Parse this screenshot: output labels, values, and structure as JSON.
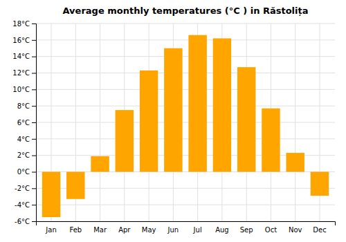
{
  "chart_data": {
    "type": "bar",
    "title": "Average monthly temperatures (°C ) in Răstolița",
    "categories": [
      "Jan",
      "Feb",
      "Mar",
      "Apr",
      "May",
      "Jun",
      "Jul",
      "Aug",
      "Sep",
      "Oct",
      "Nov",
      "Dec"
    ],
    "values": [
      -5.5,
      -3.3,
      1.9,
      7.5,
      12.3,
      15.0,
      16.6,
      16.2,
      12.7,
      7.7,
      2.3,
      -2.9
    ],
    "color": "#FFA500",
    "ylim": [
      -6,
      18
    ],
    "yticks": [
      {
        "value": -6,
        "label": "-6°C"
      },
      {
        "value": -4,
        "label": "-4°C"
      },
      {
        "value": -2,
        "label": "-2°C"
      },
      {
        "value": 0,
        "label": "0°C"
      },
      {
        "value": 2,
        "label": "2°C"
      },
      {
        "value": 4,
        "label": "4°C"
      },
      {
        "value": 6,
        "label": "6°C"
      },
      {
        "value": 8,
        "label": "8°C"
      },
      {
        "value": 10,
        "label": "10°C"
      },
      {
        "value": 12,
        "label": "12°C"
      },
      {
        "value": 14,
        "label": "14°C"
      },
      {
        "value": 16,
        "label": "16°C"
      },
      {
        "value": 18,
        "label": "18°C"
      }
    ],
    "grid": true
  }
}
